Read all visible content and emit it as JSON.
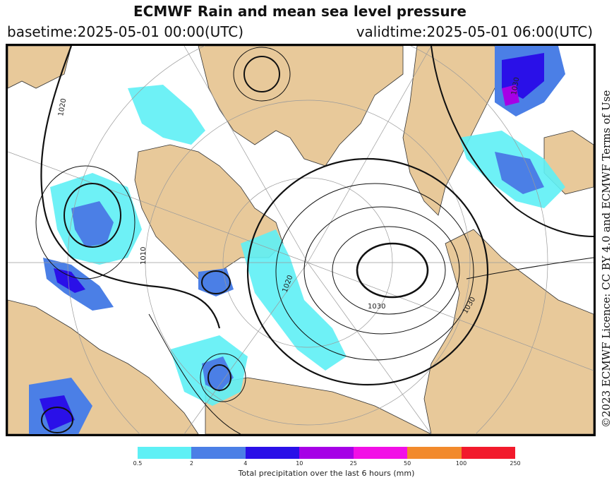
{
  "header": {
    "title": "ECMWF Rain and mean sea level pressure",
    "basetime": "basetime:2025-05-01 00:00(UTC)",
    "validtime": "validtime:2025-05-01 06:00(UTC)"
  },
  "credit": "©2023 ECMWF Licence: CC BY 4.0 and ECMWF Terms of Use",
  "map": {
    "isobar_labels": [
      "1020",
      "1030",
      "1010",
      "1020",
      "1030",
      "1030"
    ],
    "colors": {
      "land": "#e8c99a",
      "sea": "#ffffff",
      "isobar": "#111111",
      "graticule": "#9a9a9a"
    }
  },
  "legend": {
    "label": "Total precipitation over the last 6 hours (mm)",
    "ticks": [
      "0.5",
      "2",
      "4",
      "10",
      "25",
      "50",
      "100",
      "250"
    ],
    "colors": [
      "#5ef0f5",
      "#4b7fe6",
      "#2a10e8",
      "#a600e6",
      "#f20fe6",
      "#f28a2c",
      "#f21a2c"
    ]
  }
}
